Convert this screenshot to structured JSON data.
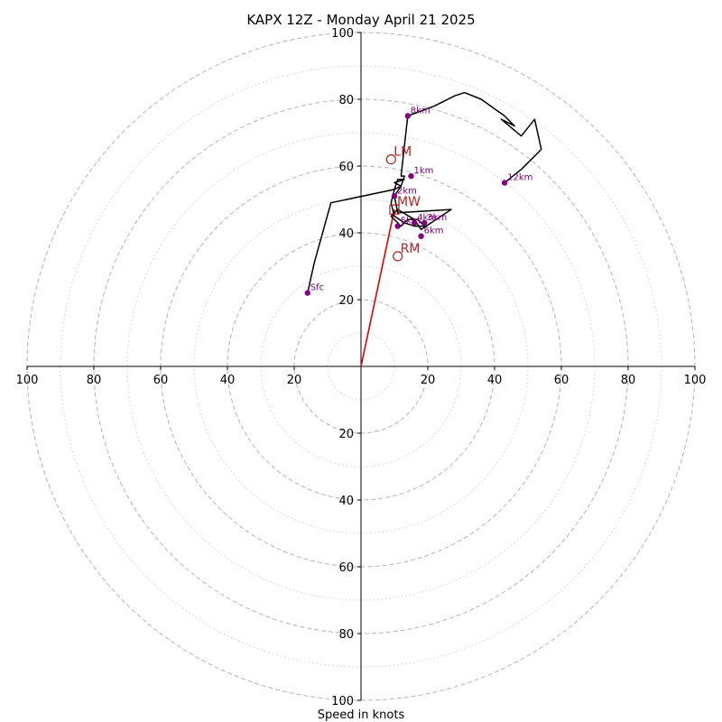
{
  "chart_data": {
    "type": "hodograph",
    "title": "KAPX 12Z - Monday April 21 2025",
    "xlabel": "Speed in knots",
    "range_max": 100,
    "rings_major": [
      20,
      40,
      60,
      80,
      100
    ],
    "rings_minor": [
      10,
      30,
      50,
      70,
      90
    ],
    "tick_labels": {
      "left": [
        "100",
        "80",
        "60",
        "40",
        "20"
      ],
      "right": [
        "20",
        "40",
        "60",
        "80",
        "100"
      ],
      "top": [
        "20",
        "40",
        "60",
        "80",
        "100"
      ],
      "bottom": [
        "20",
        "40",
        "60",
        "80",
        "100"
      ]
    },
    "trace": [
      [
        -16,
        22
      ],
      [
        -14,
        31
      ],
      [
        -9,
        49
      ],
      [
        10,
        53
      ],
      [
        11,
        56
      ],
      [
        13,
        56
      ],
      [
        10,
        55
      ],
      [
        12,
        54
      ],
      [
        10,
        53
      ],
      [
        9,
        49
      ],
      [
        10,
        45
      ],
      [
        13,
        43
      ],
      [
        16,
        42
      ],
      [
        19,
        42
      ],
      [
        17,
        44
      ],
      [
        14,
        44
      ],
      [
        12,
        42
      ],
      [
        9,
        45
      ],
      [
        11,
        47
      ],
      [
        16,
        44
      ],
      [
        18,
        41
      ],
      [
        21,
        43
      ],
      [
        27,
        47
      ],
      [
        11,
        46
      ],
      [
        10,
        51
      ],
      [
        12,
        54
      ],
      [
        13,
        57
      ],
      [
        12,
        57
      ],
      [
        14,
        75
      ],
      [
        22,
        78
      ],
      [
        28,
        81
      ],
      [
        31,
        82
      ],
      [
        36,
        80
      ],
      [
        43,
        75
      ],
      [
        46,
        72
      ],
      [
        42,
        74
      ],
      [
        48,
        69
      ],
      [
        52,
        74
      ],
      [
        54,
        65
      ],
      [
        48,
        59
      ],
      [
        43,
        55
      ]
    ],
    "height_markers": [
      {
        "label": "Sfc",
        "u": -16,
        "v": 22
      },
      {
        "label": "1km",
        "u": 15,
        "v": 57
      },
      {
        "label": "2km",
        "u": 10,
        "v": 51
      },
      {
        "label": "3km",
        "u": 19,
        "v": 43
      },
      {
        "label": "4km",
        "u": 16,
        "v": 43
      },
      {
        "label": "5km",
        "u": 11,
        "v": 42
      },
      {
        "label": "6km",
        "u": 18,
        "v": 39
      },
      {
        "label": "8km",
        "u": 14,
        "v": 75
      },
      {
        "label": "12km",
        "u": 43,
        "v": 55
      }
    ],
    "storm_motion": [
      {
        "label": "LM",
        "u": 9,
        "v": 62
      },
      {
        "label": "MW",
        "u": 10,
        "v": 47
      },
      {
        "label": "RM",
        "u": 11,
        "v": 33
      }
    ],
    "shear_vector": {
      "u": 10,
      "v": 47
    },
    "colors": {
      "trace": "#000000",
      "markers": "#800080",
      "storm": "#b22222",
      "shear": "#e00000",
      "grid": "#b5b5b5"
    }
  }
}
